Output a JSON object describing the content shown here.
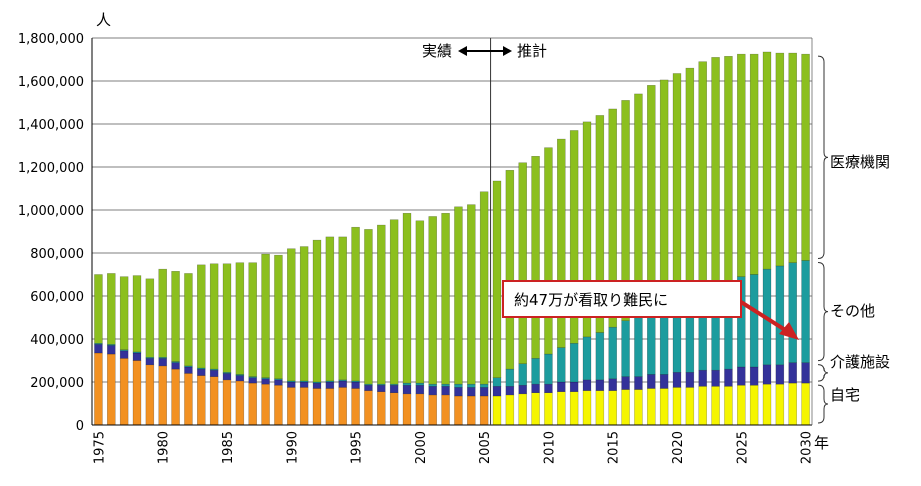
{
  "chart_data": {
    "type": "bar",
    "stacked": true,
    "x_start_year": 1975,
    "x_end_year": 2030,
    "x_tick_labels": [
      "1975",
      "1980",
      "1985",
      "1990",
      "1995",
      "2000",
      "2005",
      "2010",
      "2015",
      "2020",
      "2025",
      "2030"
    ],
    "x_unit": "年",
    "y_unit": "人",
    "ylim": [
      0,
      1800000
    ],
    "y_tick_labels": [
      "0",
      "200,000",
      "400,000",
      "600,000",
      "800,000",
      "1,000,000",
      "1,200,000",
      "1,400,000",
      "1,600,000",
      "1,800,000"
    ],
    "grid": true,
    "colors": {
      "home_actual": "#F29122",
      "home_projected": "#F5F500",
      "care_facility": "#33329A",
      "other": "#1C9C9E",
      "hospital": "#8CBF1E",
      "annotation": "#CC2222"
    },
    "series": [
      {
        "key": "home",
        "values": [
          335000,
          330000,
          310000,
          300000,
          280000,
          275000,
          260000,
          240000,
          230000,
          225000,
          210000,
          205000,
          195000,
          190000,
          185000,
          175000,
          175000,
          170000,
          170000,
          175000,
          170000,
          160000,
          155000,
          150000,
          145000,
          145000,
          140000,
          140000,
          135000,
          135000,
          135000,
          135000,
          140000,
          145000,
          150000,
          150000,
          155000,
          155000,
          160000,
          160000,
          160000,
          165000,
          165000,
          170000,
          170000,
          175000,
          175000,
          180000,
          180000,
          180000,
          185000,
          185000,
          190000,
          190000,
          195000,
          195000
        ]
      },
      {
        "key": "care_facility",
        "values": [
          40000,
          40000,
          35000,
          35000,
          30000,
          35000,
          30000,
          30000,
          30000,
          30000,
          30000,
          25000,
          25000,
          25000,
          25000,
          25000,
          25000,
          25000,
          30000,
          30000,
          30000,
          25000,
          30000,
          35000,
          40000,
          40000,
          40000,
          40000,
          40000,
          40000,
          40000,
          45000,
          40000,
          40000,
          40000,
          40000,
          45000,
          45000,
          50000,
          50000,
          55000,
          60000,
          60000,
          65000,
          65000,
          70000,
          70000,
          75000,
          75000,
          80000,
          85000,
          85000,
          90000,
          90000,
          95000,
          95000
        ]
      },
      {
        "key": "other",
        "values": [
          5000,
          5000,
          5000,
          5000,
          5000,
          5000,
          5000,
          5000,
          5000,
          5000,
          5000,
          5000,
          5000,
          5000,
          5000,
          5000,
          5000,
          5000,
          5000,
          5000,
          5000,
          5000,
          5000,
          5000,
          10000,
          10000,
          10000,
          10000,
          15000,
          15000,
          15000,
          40000,
          80000,
          100000,
          120000,
          140000,
          160000,
          180000,
          200000,
          220000,
          240000,
          260000,
          280000,
          300000,
          320000,
          340000,
          360000,
          380000,
          400000,
          410000,
          420000,
          430000,
          445000,
          460000,
          465000,
          475000
        ]
      },
      {
        "key": "hospital",
        "values": [
          320000,
          330000,
          340000,
          355000,
          365000,
          410000,
          420000,
          430000,
          480000,
          490000,
          505000,
          520000,
          530000,
          575000,
          575000,
          615000,
          625000,
          660000,
          670000,
          665000,
          715000,
          720000,
          740000,
          765000,
          790000,
          755000,
          780000,
          795000,
          825000,
          835000,
          895000,
          915000,
          925000,
          935000,
          940000,
          960000,
          970000,
          990000,
          1000000,
          1010000,
          1015000,
          1025000,
          1035000,
          1045000,
          1050000,
          1050000,
          1055000,
          1055000,
          1055000,
          1045000,
          1035000,
          1025000,
          1010000,
          990000,
          975000,
          960000
        ]
      }
    ],
    "split_year": 2005,
    "split_labels": {
      "left": "実績",
      "right": "推計"
    },
    "brackets": [
      {
        "label": "医療機関"
      },
      {
        "label": "その他"
      },
      {
        "label": "介護施設"
      },
      {
        "label": "自宅"
      }
    ],
    "annotation": "約47万が看取り難民に"
  }
}
